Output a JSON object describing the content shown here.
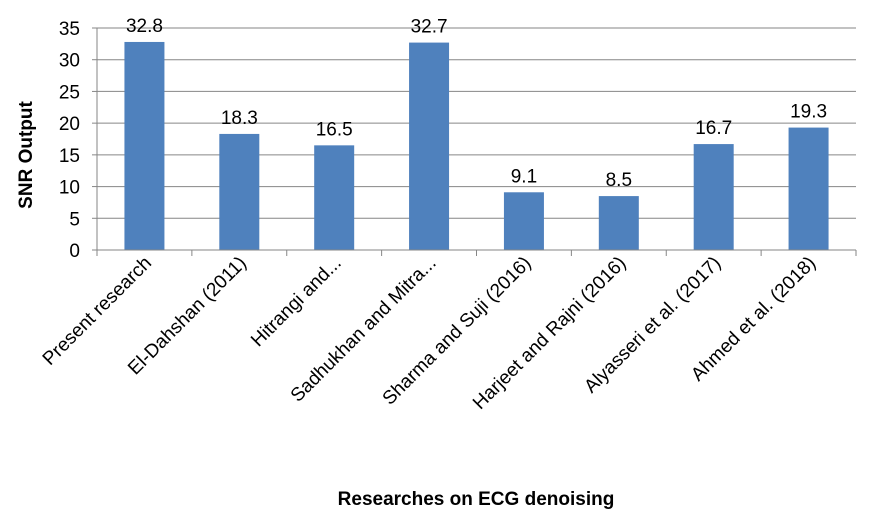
{
  "chart_data": {
    "type": "bar",
    "title": "",
    "xlabel": "Researches on ECG denoising",
    "ylabel": "SNR Output",
    "ylim": [
      0,
      35
    ],
    "ytick_step": 5,
    "grid": true,
    "legend": "none",
    "bar_color": "#4F81BD",
    "categories": [
      "Present research",
      "El-Dahshan (2011)",
      "Hitrangi and...",
      "Sadhukhan and Mitra...",
      "Sharma and Suji (2016)",
      "Harjeet and Rajni (2016)",
      "Alyasseri et al. (2017)",
      "Ahmed et al. (2018)"
    ],
    "values": [
      32.8,
      18.3,
      16.5,
      32.7,
      9.1,
      8.5,
      16.7,
      19.3
    ],
    "data_labels": [
      "32.8",
      "18.3",
      "16.5",
      "32.7",
      "9.1",
      "8.5",
      "16.7",
      "19.3"
    ]
  }
}
